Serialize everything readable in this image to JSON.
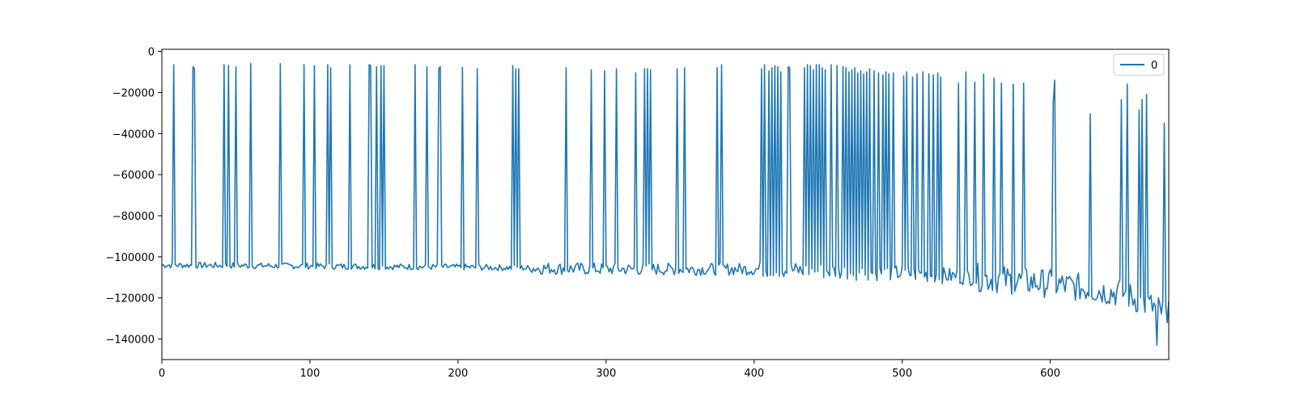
{
  "chart_data": {
    "type": "line",
    "title": "",
    "xlabel": "",
    "ylabel": "",
    "xlim": [
      0,
      680
    ],
    "ylim": [
      -150000,
      1000
    ],
    "x_ticks": [
      0,
      100,
      200,
      300,
      400,
      500,
      600
    ],
    "x_tick_labels": [
      "0",
      "100",
      "200",
      "300",
      "400",
      "500",
      "600"
    ],
    "y_ticks": [
      0,
      -20000,
      -40000,
      -60000,
      -80000,
      -100000,
      -120000,
      -140000
    ],
    "y_tick_labels": [
      "0",
      "−20000",
      "−40000",
      "−60000",
      "−80000",
      "−100000",
      "−120000",
      "−140000"
    ],
    "grid": false,
    "legend": {
      "position": "top-right",
      "entries": [
        "0"
      ]
    },
    "colors": {
      "line": "#1f77b4",
      "axes": "#000000",
      "background": "#ffffff"
    },
    "baseline_trend": [
      [
        0,
        -104000
      ],
      [
        200,
        -105000
      ],
      [
        300,
        -106000
      ],
      [
        400,
        -106000
      ],
      [
        450,
        -107000
      ],
      [
        500,
        -108000
      ],
      [
        550,
        -110000
      ],
      [
        600,
        -113000
      ],
      [
        650,
        -118000
      ],
      [
        680,
        -128000
      ]
    ],
    "spikes": [
      [
        8,
        -6500
      ],
      [
        21,
        -7500
      ],
      [
        22,
        -8500
      ],
      [
        42,
        -6500
      ],
      [
        45,
        -6800
      ],
      [
        50,
        -7500
      ],
      [
        60,
        -6000
      ],
      [
        80,
        -6000
      ],
      [
        96,
        -6500
      ],
      [
        103,
        -7000
      ],
      [
        112,
        -6500
      ],
      [
        114,
        -8000
      ],
      [
        127,
        -6500
      ],
      [
        140,
        -6500
      ],
      [
        141,
        -7000
      ],
      [
        145,
        -7500
      ],
      [
        148,
        -7000
      ],
      [
        150,
        -7000
      ],
      [
        171,
        -6500
      ],
      [
        179,
        -7500
      ],
      [
        187,
        -8500
      ],
      [
        188,
        -7500
      ],
      [
        203,
        -7800
      ],
      [
        213,
        -8500
      ],
      [
        237,
        -7000
      ],
      [
        239,
        -8500
      ],
      [
        241,
        -8500
      ],
      [
        273,
        -8000
      ],
      [
        290,
        -9000
      ],
      [
        299,
        -9500
      ],
      [
        307,
        -8500
      ],
      [
        320,
        -10500
      ],
      [
        326,
        -8500
      ],
      [
        328,
        -8500
      ],
      [
        330,
        -9000
      ],
      [
        348,
        -8500
      ],
      [
        353,
        -8000
      ],
      [
        375,
        -8000
      ],
      [
        378,
        -6500
      ],
      [
        405,
        -8500
      ],
      [
        407,
        -6500
      ],
      [
        410,
        -9500
      ],
      [
        412,
        -8000
      ],
      [
        414,
        -7000
      ],
      [
        416,
        -7500
      ],
      [
        418,
        -10000
      ],
      [
        423,
        -7500
      ],
      [
        424,
        -8000
      ],
      [
        434,
        -8000
      ],
      [
        436,
        -6500
      ],
      [
        438,
        -7000
      ],
      [
        440,
        -9000
      ],
      [
        442,
        -6500
      ],
      [
        444,
        -6500
      ],
      [
        446,
        -8000
      ],
      [
        448,
        -9000
      ],
      [
        452,
        -6500
      ],
      [
        456,
        -7000
      ],
      [
        460,
        -7500
      ],
      [
        462,
        -8000
      ],
      [
        464,
        -10000
      ],
      [
        466,
        -9000
      ],
      [
        468,
        -8000
      ],
      [
        470,
        -10500
      ],
      [
        472,
        -9500
      ],
      [
        474,
        -11000
      ],
      [
        476,
        -10000
      ],
      [
        478,
        -8500
      ],
      [
        481,
        -9500
      ],
      [
        484,
        -10500
      ],
      [
        487,
        -11500
      ],
      [
        489,
        -10000
      ],
      [
        491,
        -11000
      ],
      [
        494,
        -10500
      ],
      [
        501,
        -12000
      ],
      [
        503,
        -10000
      ],
      [
        507,
        -12500
      ],
      [
        510,
        -11000
      ],
      [
        514,
        -10000
      ],
      [
        518,
        -11000
      ],
      [
        521,
        -11500
      ],
      [
        524,
        -10500
      ],
      [
        526,
        -12500
      ],
      [
        538,
        -15500
      ],
      [
        543,
        -10000
      ],
      [
        549,
        -15000
      ],
      [
        555,
        -11000
      ],
      [
        562,
        -13000
      ],
      [
        567,
        -15500
      ],
      [
        575,
        -16000
      ],
      [
        582,
        -15500
      ],
      [
        602,
        -25000
      ],
      [
        603,
        -14000
      ],
      [
        627,
        -30500
      ],
      [
        648,
        -23500
      ],
      [
        652,
        -16000
      ],
      [
        660,
        -28500
      ],
      [
        662,
        -23500
      ],
      [
        665,
        -21000
      ],
      [
        677,
        -35000
      ]
    ]
  }
}
